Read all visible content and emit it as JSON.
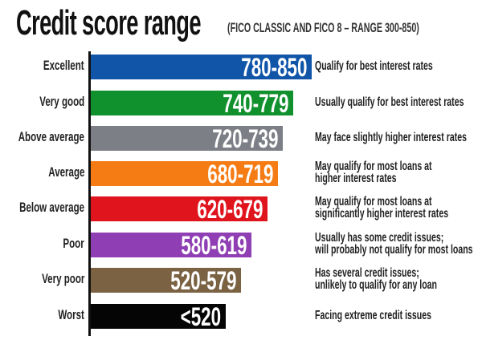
{
  "chart_data": {
    "type": "bar",
    "orientation": "horizontal",
    "title": "Credit score range",
    "subtitle": "(FICO CLASSIC AND FICO 8 – RANGE 300-850)",
    "categories": [
      "Excellent",
      "Very good",
      "Above average",
      "Average",
      "Below average",
      "Poor",
      "Very poor",
      "Worst"
    ],
    "range_labels": [
      "780-850",
      "740-779",
      "720-739",
      "680-719",
      "620-679",
      "580-619",
      "520-579",
      "<520"
    ],
    "upper_scores": [
      850,
      779,
      739,
      719,
      679,
      619,
      579,
      520
    ],
    "descriptions": [
      [
        "Qualify for best interest rates"
      ],
      [
        "Usually qualify for best interest rates"
      ],
      [
        "May face slightly higher interest rates"
      ],
      [
        "May qualify for most loans at",
        "higher interest rates"
      ],
      [
        "May qualify for most loans at",
        "significantly higher interest rates"
      ],
      [
        "Usually has some credit issues;",
        "will probably not qualify for most loans"
      ],
      [
        "Has several credit issues;",
        "unlikely to qualify for any loan"
      ],
      [
        "Facing extreme credit issues"
      ]
    ],
    "colors": [
      "#1055a8",
      "#11902e",
      "#7d7f86",
      "#f57c14",
      "#e0141c",
      "#8f3fb3",
      "#7a6243",
      "#050505"
    ],
    "xlim": [
      0,
      850
    ],
    "grid": false
  }
}
